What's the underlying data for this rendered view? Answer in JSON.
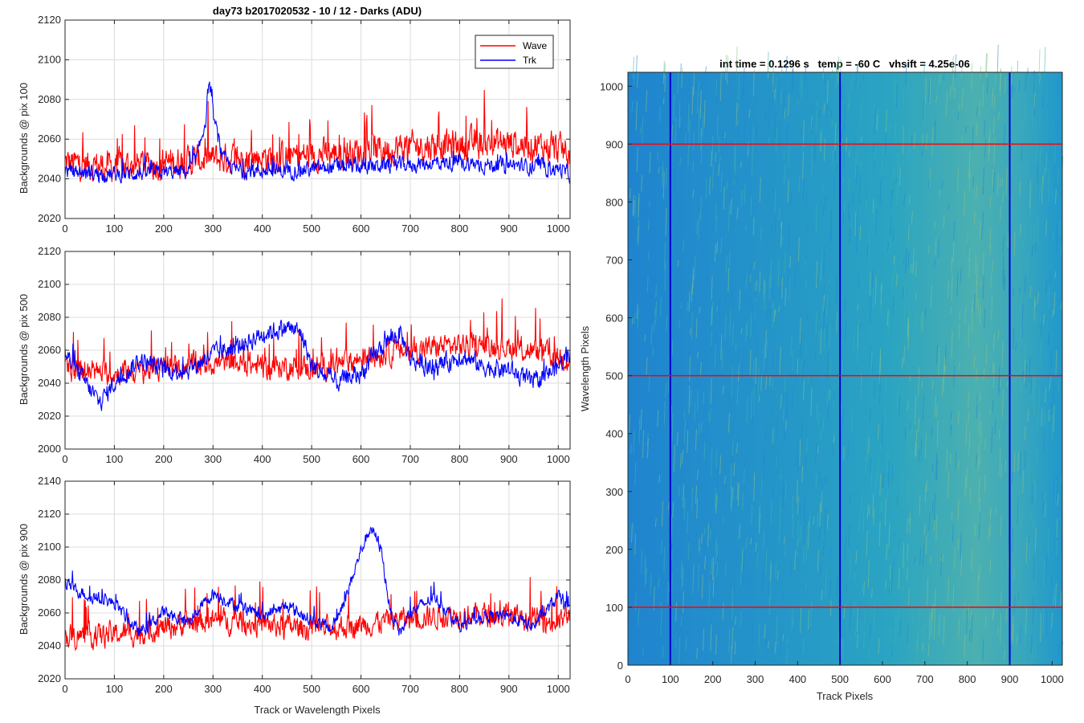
{
  "chart_data": [
    {
      "type": "line",
      "title": "day73 b2017020532 - 10 / 12 - Darks (ADU)",
      "xlabel": "",
      "ylabel": "Backgrounds @ pix 100",
      "xlim": [
        0,
        1024
      ],
      "ylim": [
        2020,
        2120
      ],
      "xticks": [
        0,
        100,
        200,
        300,
        400,
        500,
        600,
        700,
        800,
        900,
        1000
      ],
      "yticks": [
        2020,
        2040,
        2060,
        2080,
        2100,
        2120
      ],
      "grid": true,
      "legend": {
        "position": "top-right",
        "entries": [
          "Wave",
          "Trk"
        ]
      },
      "series": [
        {
          "name": "Wave",
          "color": "#ff0000",
          "x": [
            0,
            50,
            100,
            150,
            200,
            250,
            300,
            350,
            400,
            450,
            500,
            550,
            600,
            650,
            700,
            750,
            800,
            850,
            900,
            950,
            1000,
            1024
          ],
          "values": [
            2048,
            2047,
            2046,
            2047,
            2048,
            2049,
            2050,
            2050,
            2051,
            2051,
            2052,
            2053,
            2054,
            2055,
            2056,
            2057,
            2057,
            2058,
            2058,
            2057,
            2055,
            2052
          ]
        },
        {
          "name": "Trk",
          "color": "#0000ff",
          "x": [
            0,
            50,
            100,
            150,
            200,
            250,
            270,
            285,
            292,
            300,
            320,
            350,
            400,
            450,
            500,
            550,
            600,
            650,
            700,
            750,
            800,
            850,
            900,
            950,
            1000,
            1024
          ],
          "values": [
            2044,
            2043,
            2042,
            2043,
            2043,
            2044,
            2052,
            2070,
            2090,
            2072,
            2050,
            2044,
            2044,
            2044,
            2045,
            2046,
            2046,
            2047,
            2047,
            2048,
            2048,
            2047,
            2047,
            2046,
            2045,
            2042
          ]
        }
      ]
    },
    {
      "type": "line",
      "title": "",
      "xlabel": "",
      "ylabel": "Backgrounds @ pix 500",
      "xlim": [
        0,
        1024
      ],
      "ylim": [
        2000,
        2120
      ],
      "xticks": [
        0,
        100,
        200,
        300,
        400,
        500,
        600,
        700,
        800,
        900,
        1000
      ],
      "yticks": [
        2000,
        2020,
        2040,
        2060,
        2080,
        2100,
        2120
      ],
      "grid": true,
      "series": [
        {
          "name": "Wave",
          "color": "#ff0000",
          "x": [
            0,
            50,
            100,
            150,
            200,
            250,
            300,
            350,
            400,
            450,
            500,
            550,
            600,
            650,
            700,
            750,
            800,
            850,
            900,
            950,
            1000,
            1024
          ],
          "values": [
            2048,
            2047,
            2046,
            2047,
            2049,
            2051,
            2052,
            2052,
            2050,
            2050,
            2049,
            2051,
            2055,
            2058,
            2060,
            2062,
            2063,
            2063,
            2062,
            2059,
            2056,
            2054
          ]
        },
        {
          "name": "Trk",
          "color": "#0000ff",
          "x": [
            0,
            30,
            70,
            100,
            150,
            200,
            250,
            300,
            350,
            400,
            450,
            480,
            500,
            550,
            600,
            650,
            680,
            700,
            750,
            800,
            850,
            900,
            950,
            1000,
            1024
          ],
          "values": [
            2058,
            2045,
            2028,
            2040,
            2054,
            2048,
            2048,
            2058,
            2062,
            2070,
            2074,
            2070,
            2050,
            2040,
            2046,
            2065,
            2070,
            2055,
            2048,
            2057,
            2050,
            2048,
            2040,
            2050,
            2060
          ]
        }
      ]
    },
    {
      "type": "line",
      "title": "",
      "xlabel": "Track or Wavelength Pixels",
      "ylabel": "Backgrounds @ pix 900",
      "xlim": [
        0,
        1024
      ],
      "ylim": [
        2020,
        2140
      ],
      "xticks": [
        0,
        100,
        200,
        300,
        400,
        500,
        600,
        700,
        800,
        900,
        1000
      ],
      "yticks": [
        2020,
        2040,
        2060,
        2080,
        2100,
        2120,
        2140
      ],
      "grid": true,
      "series": [
        {
          "name": "Wave",
          "color": "#ff0000",
          "x": [
            0,
            50,
            100,
            150,
            200,
            250,
            300,
            350,
            400,
            450,
            500,
            550,
            600,
            650,
            700,
            750,
            800,
            850,
            900,
            950,
            1000,
            1024
          ],
          "values": [
            2046,
            2046,
            2047,
            2048,
            2051,
            2054,
            2055,
            2055,
            2053,
            2052,
            2050,
            2051,
            2053,
            2055,
            2057,
            2058,
            2059,
            2059,
            2058,
            2056,
            2054,
            2060
          ]
        },
        {
          "name": "Trk",
          "color": "#0000ff",
          "x": [
            0,
            50,
            100,
            150,
            200,
            250,
            300,
            350,
            400,
            450,
            500,
            540,
            570,
            600,
            620,
            640,
            660,
            680,
            700,
            750,
            800,
            850,
            900,
            950,
            1000,
            1024
          ],
          "values": [
            2078,
            2070,
            2066,
            2048,
            2060,
            2055,
            2072,
            2064,
            2058,
            2064,
            2056,
            2050,
            2070,
            2098,
            2112,
            2100,
            2060,
            2048,
            2060,
            2070,
            2052,
            2058,
            2058,
            2052,
            2070,
            2060
          ]
        }
      ]
    },
    {
      "type": "heatmap",
      "title": "int time = 0.1296 s   temp = -60 C   vhsift = 4.25e-06",
      "xlabel": "Track Pixels",
      "ylabel": "Wavelength Pixels",
      "xlim": [
        0,
        1024
      ],
      "ylim": [
        0,
        1024
      ],
      "xticks": [
        0,
        100,
        200,
        300,
        400,
        500,
        600,
        700,
        800,
        900,
        1000
      ],
      "yticks": [
        0,
        100,
        200,
        300,
        400,
        500,
        600,
        700,
        800,
        900,
        1000
      ],
      "grid": false,
      "colormap": [
        "#1e88d2",
        "#22a6c6",
        "#3cb4b4",
        "#86c28a"
      ],
      "vertical_lines": {
        "x": [
          100,
          500,
          900
        ],
        "color": "#0000cc"
      },
      "horizontal_lines": {
        "y": [
          100,
          500,
          900
        ],
        "color": "#ff0000"
      }
    }
  ]
}
